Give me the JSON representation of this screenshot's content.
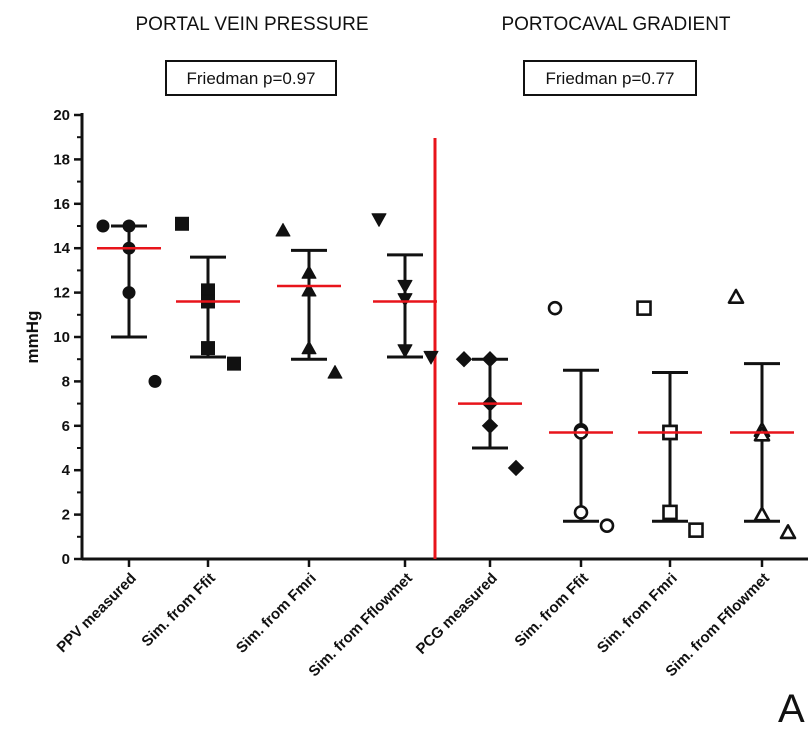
{
  "chart_data": {
    "type": "scatter",
    "ylabel": "mmHg",
    "ylim": [
      0,
      20
    ],
    "yticks": [
      0,
      2,
      4,
      6,
      8,
      10,
      12,
      14,
      16,
      18,
      20
    ],
    "panel_letter": "A",
    "divider_color": "#e8141b",
    "mean_line_color": "#e8141b",
    "groups": [
      {
        "title": "PORTAL VEIN PRESSURE",
        "stat": "Friedman p=0.97"
      },
      {
        "title": "PORTOCAVAL GRADIENT",
        "stat": "Friedman p=0.77"
      }
    ],
    "categories": [
      "PPV measured",
      "Sim. from Ffit",
      "Sim. from Fmri",
      "Sim. from Fflowmet",
      "PCG measured",
      "Sim. from Ffit",
      "Sim. from Fmri",
      "Sim. from Fflowmet"
    ],
    "series": [
      {
        "marker": "circle",
        "filled": true,
        "mean": 14.0,
        "sd_low": 10.0,
        "sd_high": 15.0,
        "points": [
          15.0,
          15.0,
          14.0,
          12.0,
          8.0
        ]
      },
      {
        "marker": "square",
        "filled": true,
        "mean": 11.6,
        "sd_low": 9.1,
        "sd_high": 13.6,
        "points": [
          15.1,
          12.1,
          11.6,
          9.5,
          8.8
        ]
      },
      {
        "marker": "triangle-up",
        "filled": true,
        "mean": 12.3,
        "sd_low": 9.0,
        "sd_high": 13.9,
        "points": [
          14.8,
          12.9,
          12.1,
          9.5,
          8.4
        ]
      },
      {
        "marker": "triangle-down",
        "filled": true,
        "mean": 11.6,
        "sd_low": 9.1,
        "sd_high": 13.7,
        "points": [
          15.3,
          12.3,
          11.7,
          9.4,
          9.1
        ]
      },
      {
        "marker": "diamond",
        "filled": true,
        "mean": 7.0,
        "sd_low": 5.0,
        "sd_high": 9.0,
        "points": [
          9.0,
          9.0,
          7.0,
          6.0,
          4.1
        ]
      },
      {
        "marker": "circle",
        "filled": false,
        "mean": 5.7,
        "sd_low": 1.7,
        "sd_high": 8.5,
        "points": [
          11.3,
          5.8,
          5.7,
          2.1,
          1.5
        ]
      },
      {
        "marker": "square",
        "filled": false,
        "mean": 5.7,
        "sd_low": 1.7,
        "sd_high": 8.4,
        "points": [
          11.3,
          5.7,
          5.7,
          2.1,
          1.3
        ]
      },
      {
        "marker": "triangle-up",
        "filled": false,
        "mean": 5.7,
        "sd_low": 1.7,
        "sd_high": 8.8,
        "points": [
          11.8,
          5.8,
          5.6,
          2.0,
          1.2
        ]
      }
    ]
  }
}
